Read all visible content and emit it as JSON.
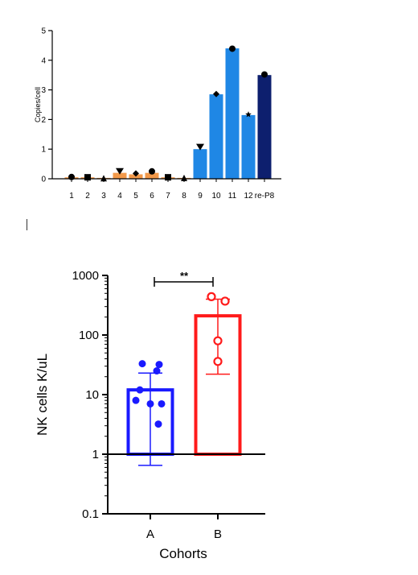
{
  "chart_data": [
    {
      "type": "bar",
      "ylabel": "Copies/cell",
      "xlabel": "",
      "ylim": [
        0,
        5
      ],
      "yticks": [
        "0",
        "1",
        "2",
        "3",
        "4",
        "5"
      ],
      "categories": [
        "1",
        "2",
        "3",
        "4",
        "5",
        "6",
        "7",
        "8",
        "9",
        "10",
        "11",
        "12",
        "re-P8"
      ],
      "values": [
        0.05,
        0.05,
        0.03,
        0.2,
        0.15,
        0.2,
        0.05,
        0.03,
        1.0,
        2.85,
        4.4,
        2.15,
        3.5
      ],
      "point_values": [
        0.06,
        0.05,
        0.02,
        0.25,
        0.18,
        0.25,
        0.05,
        0.03,
        1.07,
        2.86,
        4.39,
        2.17,
        3.52
      ],
      "markers": [
        "circle",
        "square",
        "triangle-up",
        "triangle-down",
        "diamond",
        "circle",
        "square",
        "triangle-up",
        "triangle-down",
        "diamond",
        "circle",
        "star",
        "circle"
      ],
      "colors": [
        "#f2994a",
        "#f2994a",
        "#f2994a",
        "#f2994a",
        "#f2994a",
        "#f2994a",
        "#f2994a",
        "#f2994a",
        "#1f87e5",
        "#1f87e5",
        "#1f87e5",
        "#1f87e5",
        "#0d1f6e"
      ],
      "grid": false
    },
    {
      "type": "bar",
      "xlabel": "Cohorts",
      "ylabel": "NK cells K/uL",
      "yscale": "log",
      "ylim": [
        0.1,
        1000
      ],
      "yticks": [
        "0.1",
        "1",
        "10",
        "100",
        "1000"
      ],
      "categories": [
        "A",
        "B"
      ],
      "series": [
        {
          "category": "A",
          "mean": 12,
          "error": [
            0.65,
            23
          ],
          "points": [
            33,
            32,
            25,
            12,
            8,
            7,
            7,
            3.2
          ],
          "color": "#1a1aff",
          "marker": "filled-circle"
        },
        {
          "category": "B",
          "mean": 210,
          "error": [
            22,
            400
          ],
          "points": [
            440,
            370,
            80,
            36
          ],
          "color": "#ff1a1a",
          "marker": "open-circle"
        }
      ],
      "annotation": "**",
      "grid": false
    }
  ]
}
